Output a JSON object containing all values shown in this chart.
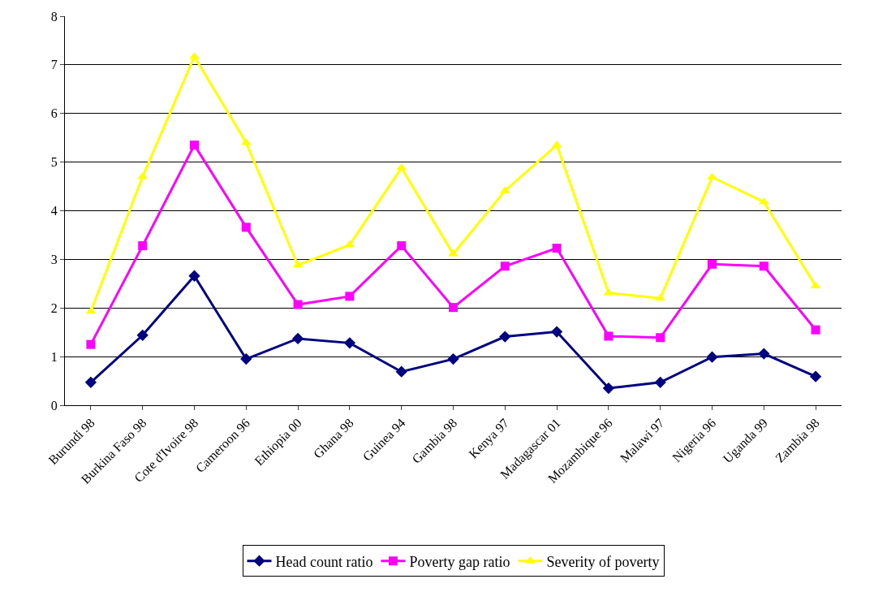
{
  "chart_data": {
    "type": "line",
    "categories": [
      "Burundi 98",
      "Burkina Faso 98",
      "Cote d'Ivoire 98",
      "Cameroon 96",
      "Ethiopia 00",
      "Ghana 98",
      "Guinea 94",
      "Gambia 98",
      "Kenya 97",
      "Madagascar 01",
      "Mozambique 96",
      "Malawi 97",
      "Nigeria 96",
      "Uganda 99",
      "Zambia 98"
    ],
    "series": [
      {
        "name": "Head count ratio",
        "color": "#000080",
        "marker": "diamond",
        "values": [
          0.47,
          1.44,
          2.66,
          0.95,
          1.37,
          1.28,
          0.69,
          0.95,
          1.41,
          1.51,
          0.35,
          0.47,
          0.99,
          1.06,
          0.59
        ]
      },
      {
        "name": "Poverty gap ratio",
        "color": "#ff00ff",
        "marker": "square",
        "values": [
          1.25,
          3.28,
          5.35,
          3.66,
          2.07,
          2.24,
          3.28,
          2.01,
          2.86,
          3.23,
          1.42,
          1.39,
          2.9,
          2.86,
          1.55
        ]
      },
      {
        "name": "Severity of poverty",
        "color": "#ffff00",
        "marker": "triangle",
        "values": [
          1.93,
          4.7,
          7.17,
          5.4,
          2.88,
          3.3,
          4.88,
          3.11,
          4.41,
          5.35,
          2.31,
          2.2,
          4.69,
          4.18,
          2.45
        ]
      }
    ],
    "ylim": [
      0,
      8
    ],
    "yticks": [
      0,
      1,
      2,
      3,
      4,
      5,
      6,
      7,
      8
    ],
    "grid": "y",
    "legend": "bottom",
    "line_style": "solid"
  }
}
